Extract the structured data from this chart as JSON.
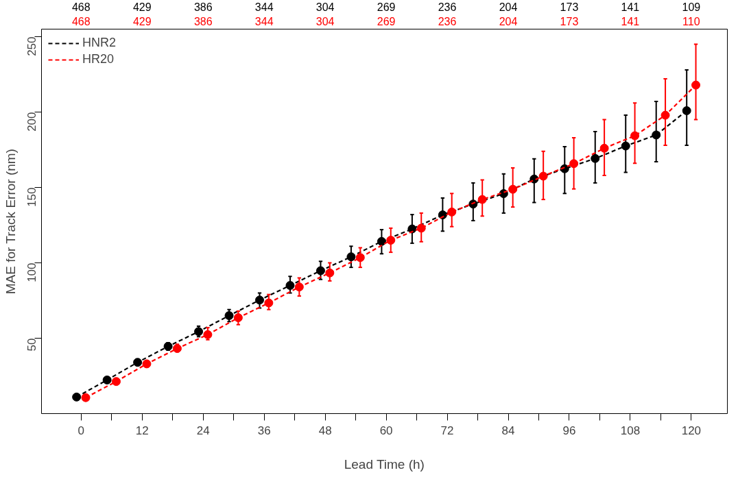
{
  "chart_data": {
    "type": "line",
    "xlabel": "Lead Time (h)",
    "ylabel": "MAE for Track Error (nm)",
    "series": [
      {
        "name": "HNR2",
        "color": "#000000",
        "x": [
          -0.9,
          5.1,
          11.1,
          17.1,
          23.1,
          29.1,
          35.1,
          41.1,
          47.1,
          53.1,
          59.1,
          65.1,
          71.1,
          77.1,
          83.1,
          89.1,
          95.1,
          101.1,
          107.1,
          113.1,
          119.1
        ],
        "values": [
          11,
          22.3,
          34,
          44.6,
          54.4,
          65,
          75.3,
          85,
          94.8,
          104,
          114.2,
          122.5,
          131.8,
          139,
          145.9,
          155.6,
          162.4,
          169.2,
          177.5,
          184.8,
          200.9
        ],
        "errors": [
          [
            10,
            12
          ],
          [
            21,
            24
          ],
          [
            32,
            36
          ],
          [
            42,
            47
          ],
          [
            51,
            58
          ],
          [
            61,
            69
          ],
          [
            70,
            80
          ],
          [
            80,
            91
          ],
          [
            89,
            101
          ],
          [
            97,
            111
          ],
          [
            106,
            122
          ],
          [
            113,
            132
          ],
          [
            121,
            143
          ],
          [
            128,
            153
          ],
          [
            133,
            159
          ],
          [
            140,
            169
          ],
          [
            146,
            177
          ],
          [
            153,
            187
          ],
          [
            160,
            198
          ],
          [
            167,
            207
          ],
          [
            178,
            228
          ]
        ]
      },
      {
        "name": "HR20",
        "color": "#ff0000",
        "x": [
          0.9,
          6.9,
          12.9,
          18.9,
          24.9,
          30.9,
          36.9,
          42.9,
          48.9,
          54.9,
          60.9,
          66.9,
          72.9,
          78.9,
          84.9,
          90.9,
          96.9,
          102.9,
          108.9,
          114.9,
          120.9
        ],
        "values": [
          10.6,
          21.3,
          33,
          43.2,
          52.4,
          63.6,
          73.4,
          84,
          93.3,
          103.5,
          115,
          123,
          133.7,
          142,
          148.8,
          157.5,
          165.8,
          176,
          184.3,
          197.9,
          217.9
        ],
        "errors": [
          [
            10,
            11
          ],
          [
            20,
            23
          ],
          [
            31,
            35
          ],
          [
            41,
            46
          ],
          [
            49,
            57
          ],
          [
            59,
            68
          ],
          [
            69,
            79
          ],
          [
            78,
            90
          ],
          [
            88,
            100
          ],
          [
            97,
            110
          ],
          [
            107,
            123
          ],
          [
            114,
            133
          ],
          [
            124,
            146
          ],
          [
            131,
            155
          ],
          [
            137,
            163
          ],
          [
            142,
            174
          ],
          [
            149,
            183
          ],
          [
            158,
            195
          ],
          [
            166,
            206
          ],
          [
            178,
            222
          ],
          [
            195,
            245
          ]
        ]
      }
    ],
    "xlim": [
      -7.8,
      127.1
    ],
    "xticks": [
      0,
      {
        "value": 6,
        "label": null
      },
      12,
      {
        "value": 18,
        "label": null
      },
      24,
      {
        "value": 30,
        "label": null
      },
      36,
      {
        "value": 42,
        "label": null
      },
      48,
      {
        "value": 54,
        "label": null
      },
      60,
      {
        "value": 66,
        "label": null
      },
      72,
      {
        "value": 78,
        "label": null
      },
      84,
      {
        "value": 90,
        "label": null
      },
      96,
      {
        "value": 102,
        "label": null
      },
      108,
      {
        "value": 114,
        "label": null
      },
      120
    ],
    "ylim": [
      0,
      255
    ],
    "yticks": [
      50,
      100,
      150,
      200,
      250
    ],
    "grid": false,
    "legend": "top left",
    "marker": "circle",
    "line_style": "dashed",
    "annotations": [
      "468",
      "429",
      "386",
      "344",
      "304",
      "269",
      "236",
      "204",
      "173",
      "141",
      "109",
      "468",
      "429",
      "386",
      "344",
      "304",
      "269",
      "236",
      "204",
      "173",
      "141",
      "110"
    ]
  }
}
